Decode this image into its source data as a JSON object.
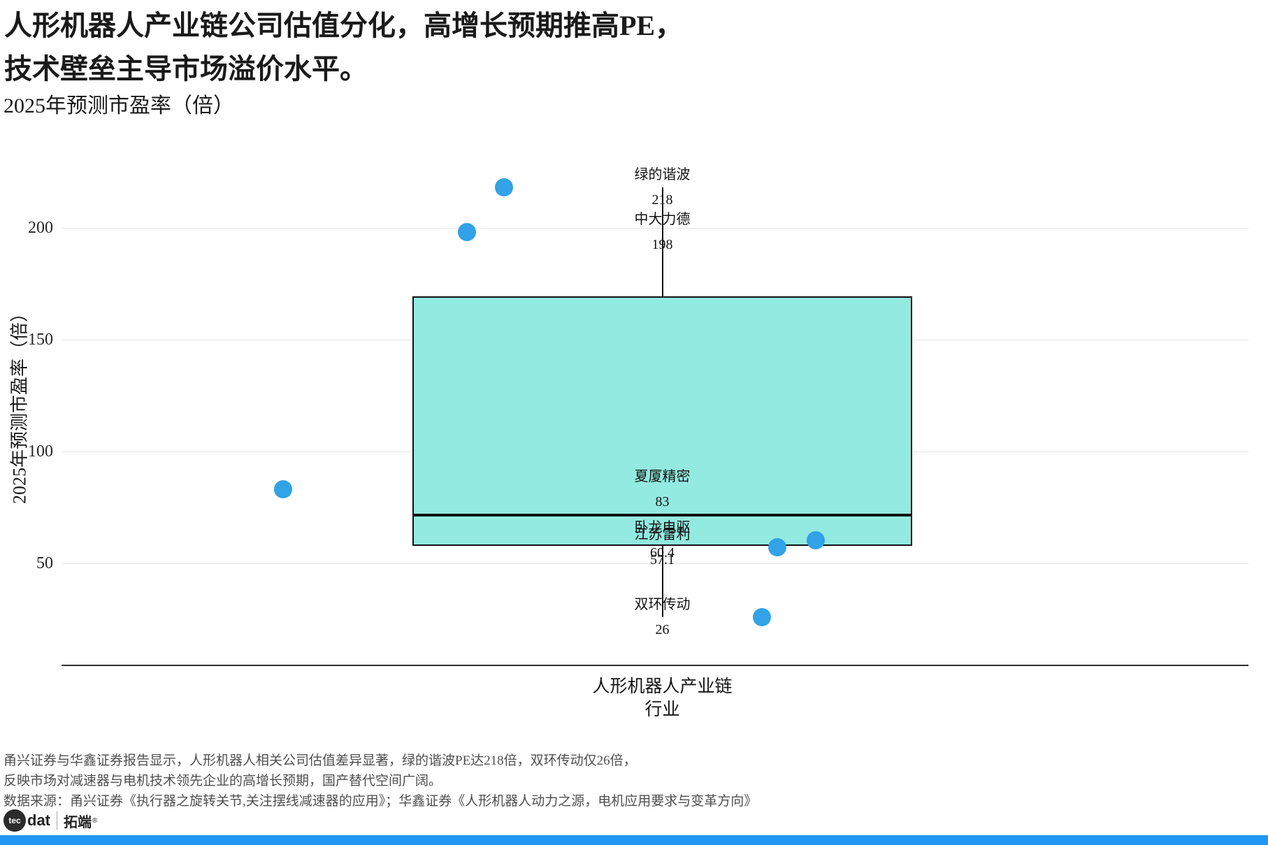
{
  "page": {
    "background": "#ffffff",
    "accent_bar_color": "#2196F3"
  },
  "title": {
    "line1": "人形机器人产业链公司估值分化，高增长预期推高PE，",
    "line2": "技术壁垒主导市场溢价水平。",
    "subtitle": "2025年预测市盈率（倍）"
  },
  "chart_data": {
    "type": "boxplot",
    "title": "2025年预测市盈率（倍）",
    "ylabel": "2025年预测市盈率（倍）",
    "xtick_label": "人形机器人产业链",
    "xlabel": "行业",
    "yticks": [
      200,
      150,
      100,
      50
    ],
    "ylim": [
      4,
      240
    ],
    "grid": "horizontal",
    "legend": "none",
    "box": {
      "category": "人形机器人产业链",
      "q1": 57.9,
      "median": 71.7,
      "q3": 169.3,
      "whisker_low": 26,
      "whisker_high": 218,
      "fill_color": "#93EAE0",
      "edge_color": "#111111"
    },
    "points": [
      {
        "company": "绿的谐波",
        "pe": 218,
        "label": "218",
        "jitter": -227
      },
      {
        "company": "中大力德",
        "pe": 198,
        "label": "198",
        "jitter": -280
      },
      {
        "company": "夏厦精密",
        "pe": 83,
        "label": "83",
        "jitter": -543
      },
      {
        "company": "卧龙电驱",
        "pe": 60.4,
        "label": "60.4",
        "jitter": 219
      },
      {
        "company": "江苏雷利",
        "pe": 57.1,
        "label": "57.1",
        "jitter": 164
      },
      {
        "company": "双环传动",
        "pe": 26,
        "label": "26",
        "jitter": 142
      }
    ],
    "point_color": "#31A3E6"
  },
  "footer": {
    "line1": "甬兴证券与华鑫证券报告显示，人形机器人相关公司估值差异显著，绿的谐波PE达218倍，双环传动仅26倍，",
    "line2": "反映市场对减速器与电机技术领先企业的高增长预期，国产替代空间广阔。",
    "line3": "数据来源：甬兴证券《执行器之旋转关节,关注摆线减速器的应用》；华鑫证券《人形机器人动力之源，电机应用要求与变革方向》"
  },
  "logo": {
    "circle_label": "tec",
    "name_suffix": "dat",
    "cn_name": "拓端",
    "reg_mark": "®"
  }
}
